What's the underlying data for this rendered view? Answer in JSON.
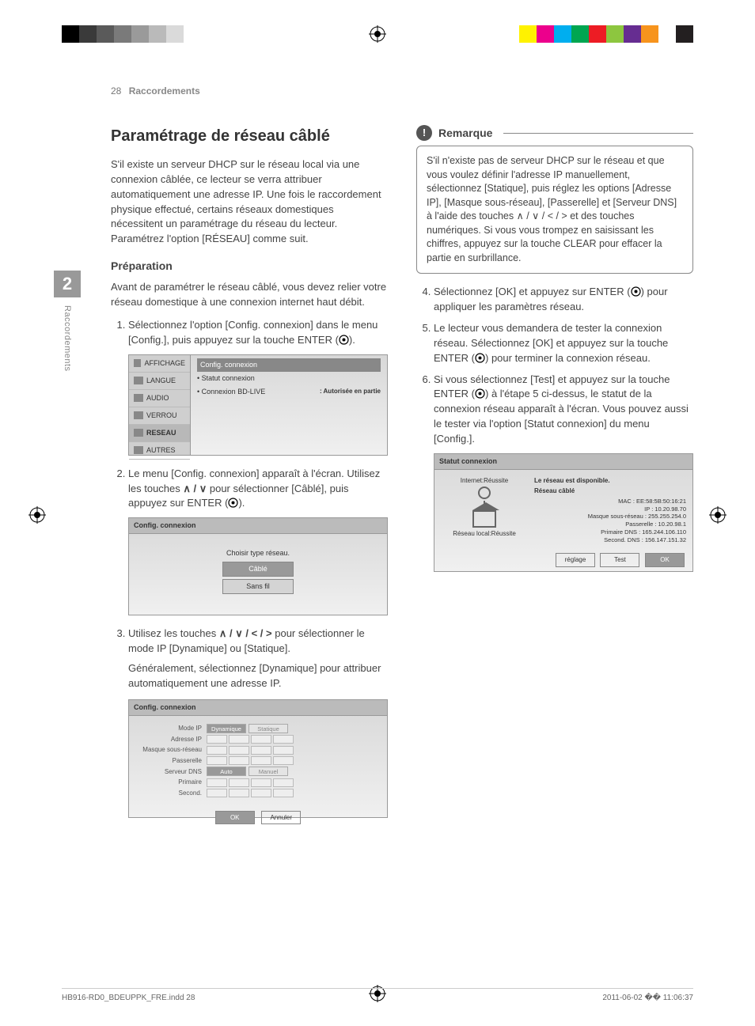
{
  "printer_bars": {
    "left": [
      "#000000",
      "#3a3a3a",
      "#5a5a5a",
      "#7a7a7a",
      "#9a9a9a",
      "#bababa",
      "#dadada",
      "#ffffff"
    ],
    "right": [
      "#fff200",
      "#ec008c",
      "#00aeef",
      "#00a651",
      "#ed1c24",
      "#8dc63f",
      "#662d91",
      "#f7941d",
      "#ffffff",
      "#231f20"
    ]
  },
  "header": {
    "page_number": "28",
    "section": "Raccordements"
  },
  "sidetab": {
    "number": "2",
    "label": "Raccordements"
  },
  "col1": {
    "h2": "Paramétrage de réseau câblé",
    "intro": "S'il existe un serveur DHCP sur le réseau local via une connexion câblée, ce lecteur se verra attribuer automatiquement une adresse IP. Une fois le raccordement physique effectué, certains réseaux domestiques nécessitent un paramétrage du réseau du lecteur. Paramétrez l'option [RÉSEAU] comme suit.",
    "h3": "Préparation",
    "prep": "Avant de paramétrer le réseau câblé, vous devez relier votre réseau domestique à une connexion internet haut débit.",
    "step1": "Sélectionnez l'option [Config. connexion] dans le menu [Config.], puis appuyez sur la touche ENTER (",
    "step1_end": ").",
    "step2": "Le menu [Config. connexion] apparaît à l'écran. Utilisez les touches ",
    "step2_mid": " pour sélectionner [Câblé], puis appuyez sur ENTER (",
    "step2_end": ").",
    "step3": "Utilisez les touches ",
    "step3_mid": " pour sélectionner le mode IP [Dynamique] ou [Statique].",
    "step3_sub": "Généralement, sélectionnez [Dynamique] pour attribuer automatiquement une adresse IP.",
    "arrows_ud": "∧ / ∨",
    "arrows_all": "∧ / ∨ / < / >"
  },
  "shot1": {
    "menu": [
      "AFFICHAGE",
      "LANGUE",
      "AUDIO",
      "VERROU",
      "RESEAU",
      "AUTRES"
    ],
    "sel": "Config. connexion",
    "rows": [
      "Statut connexion",
      "Connexion BD-LIVE"
    ],
    "auth": ": Autorisée en partie"
  },
  "shot2": {
    "title": "Config. connexion",
    "label": "Choisir type réseau.",
    "opt1": "Câblé",
    "opt2": "Sans fil"
  },
  "shot3": {
    "title": "Config. connexion",
    "rows": [
      {
        "l": "Mode IP",
        "b1": "Dynamique",
        "b2": "Statique",
        "type": "btns"
      },
      {
        "l": "Adresse IP",
        "type": "fields"
      },
      {
        "l": "Masque sous-réseau",
        "type": "fields"
      },
      {
        "l": "Passerelle",
        "type": "fields"
      },
      {
        "l": "Serveur DNS",
        "b1": "Auto",
        "b2": "Manuel",
        "type": "btns"
      },
      {
        "l": "Primaire",
        "type": "fields"
      },
      {
        "l": "Second.",
        "type": "fields"
      }
    ],
    "ok": "OK",
    "cancel": "Annuler"
  },
  "col2": {
    "note_title": "Remarque",
    "note_body": "S'il n'existe pas de serveur DHCP sur le réseau et que vous voulez définir l'adresse IP manuellement, sélectionnez [Statique], puis réglez les options [Adresse IP], [Masque sous-réseau], [Passerelle] et [Serveur DNS] à l'aide des touches ∧ / ∨ / < / > et des touches numériques. Si vous vous trompez en saisissant les chiffres, appuyez sur la touche CLEAR pour effacer la partie en surbrillance.",
    "step4": "Sélectionnez [OK] et appuyez sur ENTER (",
    "step4_end": ") pour appliquer les paramètres réseau.",
    "step5": "Le lecteur vous demandera de tester la connexion réseau. Sélectionnez [OK] et appuyez sur la touche ENTER (",
    "step5_end": ") pour terminer la connexion réseau.",
    "step6": "Si vous sélectionnez [Test] et appuyez sur la touche ENTER (",
    "step6_mid": ") à l'étape 5 ci-dessus, le statut de la connexion réseau apparaît à l'écran. Vous pouvez aussi le tester via l'option [Statut connexion] du menu [Config.]."
  },
  "shot4": {
    "title": "Statut connexion",
    "internet": "Internet:Réussite",
    "lan": "Réseau local:Réussite",
    "avail": "Le réseau est disponible.",
    "type": "Réseau câblé",
    "mac": "MAC : EE:58:5B:50:16:21",
    "ip": "IP : 10.20.98.70",
    "mask": "Masque sous-réseau : 255.255.254.0",
    "gw": "Passerelle : 10.20.98.1",
    "dns1": "Primaire DNS : 165.244.106.110",
    "dns2": "Second. DNS : 156.147.151.32",
    "b1": "réglage",
    "b2": "Test",
    "b3": "OK"
  },
  "footer": {
    "file": "HB916-RD0_BDEUPPK_FRE.indd   28",
    "stamp": "2011-06-02   �� 11:06:37"
  }
}
